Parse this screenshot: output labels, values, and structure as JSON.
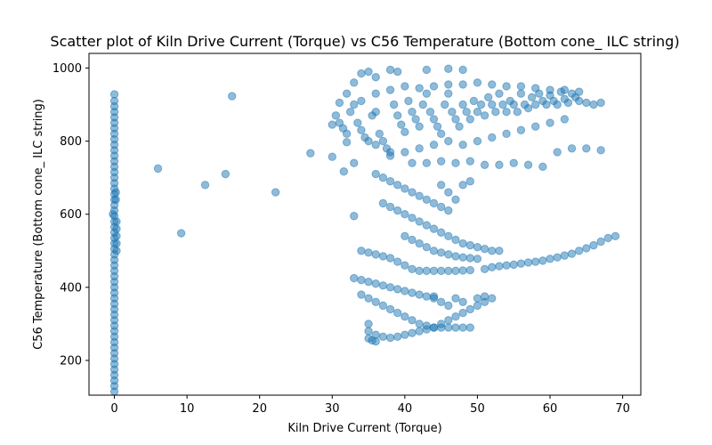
{
  "chart_data": {
    "type": "scatter",
    "title": "Scatter plot of Kiln Drive Current (Torque) vs C56 Temperature (Bottom cone_ ILC string)",
    "xlabel": "Kiln Drive Current (Torque)",
    "ylabel": "C56 Temperature (Bottom cone_ ILC string)",
    "xlim": [
      -3.5,
      72.5
    ],
    "ylim": [
      105,
      1040
    ],
    "xticks": [
      0,
      10,
      20,
      30,
      40,
      50,
      60,
      70
    ],
    "yticks": [
      200,
      400,
      600,
      800,
      1000
    ],
    "grid": false,
    "color": "#1f77b4",
    "alpha": 0.5,
    "series": [
      {
        "values_description_omitted": true,
        "points": [
          [
            0,
            115
          ],
          [
            0,
            130
          ],
          [
            0,
            145
          ],
          [
            0,
            160
          ],
          [
            0,
            175
          ],
          [
            0,
            190
          ],
          [
            0,
            205
          ],
          [
            0,
            220
          ],
          [
            0,
            235
          ],
          [
            0,
            250
          ],
          [
            0,
            265
          ],
          [
            0,
            280
          ],
          [
            0,
            295
          ],
          [
            0,
            310
          ],
          [
            0,
            325
          ],
          [
            0,
            340
          ],
          [
            0,
            355
          ],
          [
            0,
            370
          ],
          [
            0,
            385
          ],
          [
            0,
            400
          ],
          [
            0,
            415
          ],
          [
            0,
            430
          ],
          [
            0,
            445
          ],
          [
            0,
            460
          ],
          [
            0,
            475
          ],
          [
            0,
            490
          ],
          [
            0,
            505
          ],
          [
            0,
            520
          ],
          [
            0,
            535
          ],
          [
            0,
            550
          ],
          [
            0,
            565
          ],
          [
            0,
            580
          ],
          [
            0,
            595
          ],
          [
            0,
            610
          ],
          [
            0,
            625
          ],
          [
            0,
            640
          ],
          [
            0,
            655
          ],
          [
            0,
            670
          ],
          [
            0,
            685
          ],
          [
            0,
            700
          ],
          [
            0,
            715
          ],
          [
            0,
            730
          ],
          [
            0,
            745
          ],
          [
            0,
            760
          ],
          [
            0,
            775
          ],
          [
            0,
            790
          ],
          [
            0,
            805
          ],
          [
            0,
            820
          ],
          [
            0,
            835
          ],
          [
            0,
            850
          ],
          [
            0,
            865
          ],
          [
            0,
            880
          ],
          [
            0,
            895
          ],
          [
            0,
            910
          ],
          [
            0,
            928
          ],
          [
            0.3,
            520
          ],
          [
            0.3,
            540
          ],
          [
            0.3,
            560
          ],
          [
            0.3,
            580
          ],
          [
            0.3,
            500
          ],
          [
            -0.2,
            600
          ],
          [
            0.2,
            640
          ],
          [
            0.2,
            660
          ],
          [
            6,
            725
          ],
          [
            9.2,
            548
          ],
          [
            12.5,
            680
          ],
          [
            15.3,
            710
          ],
          [
            16.2,
            923
          ],
          [
            22.2,
            660
          ],
          [
            27,
            767
          ],
          [
            30,
            757
          ],
          [
            31.6,
            717
          ],
          [
            32,
            797
          ],
          [
            33,
            595
          ],
          [
            33,
            740
          ],
          [
            31,
            905
          ],
          [
            32,
            930
          ],
          [
            33,
            960
          ],
          [
            34,
            985
          ],
          [
            35,
            990
          ],
          [
            36,
            975
          ],
          [
            38,
            995
          ],
          [
            39,
            990
          ],
          [
            43,
            995
          ],
          [
            46,
            998
          ],
          [
            48,
            995
          ],
          [
            30,
            845
          ],
          [
            30.5,
            870
          ],
          [
            31,
            850
          ],
          [
            31.5,
            835
          ],
          [
            32,
            820
          ],
          [
            32.5,
            880
          ],
          [
            33,
            900
          ],
          [
            33.5,
            850
          ],
          [
            34,
            830
          ],
          [
            34.5,
            810
          ],
          [
            35,
            800
          ],
          [
            35.5,
            870
          ],
          [
            36,
            880
          ],
          [
            36.5,
            820
          ],
          [
            37,
            800
          ],
          [
            37.5,
            780
          ],
          [
            38,
            760
          ],
          [
            38.5,
            900
          ],
          [
            39,
            870
          ],
          [
            39.5,
            845
          ],
          [
            40,
            825
          ],
          [
            40.5,
            910
          ],
          [
            41,
            880
          ],
          [
            41.5,
            860
          ],
          [
            42,
            840
          ],
          [
            42.5,
            900
          ],
          [
            43,
            930
          ],
          [
            43.5,
            880
          ],
          [
            44,
            860
          ],
          [
            44.5,
            840
          ],
          [
            45,
            820
          ],
          [
            45.5,
            900
          ],
          [
            46,
            930
          ],
          [
            46.5,
            880
          ],
          [
            47,
            860
          ],
          [
            47.5,
            840
          ],
          [
            48,
            900
          ],
          [
            48.5,
            880
          ],
          [
            49,
            860
          ],
          [
            49.5,
            910
          ],
          [
            50,
            880
          ],
          [
            50.5,
            900
          ],
          [
            51,
            870
          ],
          [
            51.5,
            920
          ],
          [
            52,
            900
          ],
          [
            52.5,
            880
          ],
          [
            53,
            930
          ],
          [
            53.5,
            900
          ],
          [
            54,
            880
          ],
          [
            54.5,
            910
          ],
          [
            55,
            900
          ],
          [
            55.5,
            880
          ],
          [
            56,
            930
          ],
          [
            56.5,
            900
          ],
          [
            57,
            890
          ],
          [
            57.5,
            920
          ],
          [
            58,
            900
          ],
          [
            58.5,
            930
          ],
          [
            59,
            910
          ],
          [
            59.5,
            900
          ],
          [
            60,
            925
          ],
          [
            60.5,
            910
          ],
          [
            61,
            900
          ],
          [
            61.5,
            935
          ],
          [
            62,
            915
          ],
          [
            62.5,
            905
          ],
          [
            63,
            930
          ],
          [
            63.5,
            920
          ],
          [
            64,
            910
          ],
          [
            65,
            905
          ],
          [
            66,
            900
          ],
          [
            67,
            905
          ],
          [
            34,
            910
          ],
          [
            36,
            930
          ],
          [
            38,
            940
          ],
          [
            40,
            950
          ],
          [
            42,
            945
          ],
          [
            44,
            950
          ],
          [
            46,
            955
          ],
          [
            48,
            955
          ],
          [
            50,
            960
          ],
          [
            52,
            955
          ],
          [
            54,
            950
          ],
          [
            56,
            950
          ],
          [
            58,
            945
          ],
          [
            60,
            940
          ],
          [
            62,
            940
          ],
          [
            64,
            935
          ],
          [
            36,
            790
          ],
          [
            38,
            770
          ],
          [
            40,
            770
          ],
          [
            42,
            780
          ],
          [
            44,
            790
          ],
          [
            46,
            800
          ],
          [
            48,
            790
          ],
          [
            50,
            800
          ],
          [
            52,
            810
          ],
          [
            54,
            820
          ],
          [
            56,
            830
          ],
          [
            58,
            840
          ],
          [
            60,
            850
          ],
          [
            62,
            860
          ],
          [
            41,
            740
          ],
          [
            43,
            740
          ],
          [
            45,
            745
          ],
          [
            47,
            740
          ],
          [
            49,
            745
          ],
          [
            51,
            735
          ],
          [
            53,
            735
          ],
          [
            55,
            740
          ],
          [
            57,
            735
          ],
          [
            59,
            730
          ],
          [
            61,
            770
          ],
          [
            63,
            780
          ],
          [
            65,
            780
          ],
          [
            67,
            775
          ],
          [
            36,
            710
          ],
          [
            37,
            700
          ],
          [
            38,
            690
          ],
          [
            39,
            680
          ],
          [
            40,
            670
          ],
          [
            41,
            660
          ],
          [
            42,
            650
          ],
          [
            43,
            640
          ],
          [
            44,
            630
          ],
          [
            45,
            620
          ],
          [
            46,
            610
          ],
          [
            47,
            640
          ],
          [
            48,
            680
          ],
          [
            49,
            690
          ],
          [
            46,
            660
          ],
          [
            45,
            680
          ],
          [
            37,
            630
          ],
          [
            38,
            620
          ],
          [
            39,
            610
          ],
          [
            40,
            600
          ],
          [
            41,
            590
          ],
          [
            42,
            580
          ],
          [
            43,
            570
          ],
          [
            44,
            560
          ],
          [
            45,
            550
          ],
          [
            46,
            540
          ],
          [
            47,
            530
          ],
          [
            48,
            520
          ],
          [
            49,
            515
          ],
          [
            50,
            510
          ],
          [
            51,
            505
          ],
          [
            52,
            500
          ],
          [
            53,
            500
          ],
          [
            40,
            540
          ],
          [
            41,
            530
          ],
          [
            42,
            520
          ],
          [
            43,
            510
          ],
          [
            44,
            500
          ],
          [
            45,
            495
          ],
          [
            46,
            490
          ],
          [
            47,
            485
          ],
          [
            48,
            482
          ],
          [
            49,
            480
          ],
          [
            50,
            478
          ],
          [
            34,
            500
          ],
          [
            35,
            495
          ],
          [
            36,
            490
          ],
          [
            37,
            485
          ],
          [
            38,
            480
          ],
          [
            39,
            470
          ],
          [
            40,
            460
          ],
          [
            41,
            450
          ],
          [
            42,
            445
          ],
          [
            43,
            445
          ],
          [
            44,
            445
          ],
          [
            45,
            445
          ],
          [
            46,
            445
          ],
          [
            47,
            445
          ],
          [
            48,
            446
          ],
          [
            49,
            447
          ],
          [
            51,
            450
          ],
          [
            52,
            455
          ],
          [
            53,
            458
          ],
          [
            54,
            460
          ],
          [
            55,
            462
          ],
          [
            56,
            465
          ],
          [
            57,
            468
          ],
          [
            58,
            470
          ],
          [
            59,
            473
          ],
          [
            60,
            478
          ],
          [
            61,
            482
          ],
          [
            62,
            487
          ],
          [
            63,
            492
          ],
          [
            64,
            500
          ],
          [
            65,
            507
          ],
          [
            66,
            515
          ],
          [
            67,
            525
          ],
          [
            68,
            535
          ],
          [
            69,
            540
          ],
          [
            33,
            425
          ],
          [
            34,
            420
          ],
          [
            35,
            415
          ],
          [
            36,
            410
          ],
          [
            37,
            405
          ],
          [
            38,
            400
          ],
          [
            39,
            395
          ],
          [
            40,
            390
          ],
          [
            41,
            385
          ],
          [
            42,
            380
          ],
          [
            43,
            375
          ],
          [
            44,
            370
          ],
          [
            45,
            360
          ],
          [
            46,
            350
          ],
          [
            34,
            380
          ],
          [
            35,
            370
          ],
          [
            36,
            360
          ],
          [
            37,
            350
          ],
          [
            38,
            340
          ],
          [
            39,
            330
          ],
          [
            40,
            320
          ],
          [
            41,
            310
          ],
          [
            42,
            300
          ],
          [
            43,
            295
          ],
          [
            44,
            290
          ],
          [
            45,
            290
          ],
          [
            46,
            290
          ],
          [
            47,
            290
          ],
          [
            48,
            290
          ],
          [
            49,
            290
          ],
          [
            35,
            300
          ],
          [
            35,
            280
          ],
          [
            35,
            260
          ],
          [
            36,
            270
          ],
          [
            37,
            265
          ],
          [
            38,
            262
          ],
          [
            39,
            265
          ],
          [
            40,
            270
          ],
          [
            41,
            275
          ],
          [
            42,
            280
          ],
          [
            43,
            285
          ],
          [
            44,
            290
          ],
          [
            45,
            300
          ],
          [
            46,
            310
          ],
          [
            47,
            320
          ],
          [
            48,
            330
          ],
          [
            49,
            340
          ],
          [
            50,
            350
          ],
          [
            51,
            360
          ],
          [
            52,
            370
          ],
          [
            44,
            375
          ],
          [
            47,
            370
          ],
          [
            48,
            360
          ],
          [
            50,
            370
          ],
          [
            51,
            375
          ],
          [
            35.5,
            255
          ],
          [
            36,
            252
          ]
        ]
      }
    ]
  }
}
